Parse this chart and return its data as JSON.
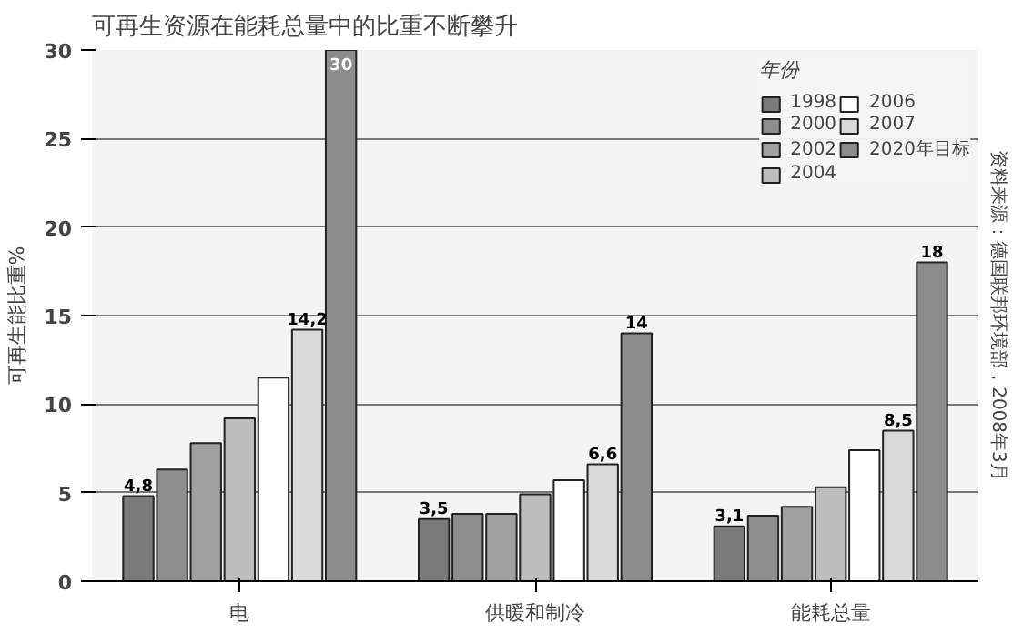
{
  "chart_data": {
    "type": "bar",
    "title": "可再生资源在能耗总量中的比重不断攀升",
    "ylabel": "可再生能比重%",
    "annotations": [
      "资料来源：德国联邦环境部，2008年3月"
    ],
    "categories": [
      "电",
      "供暖和制冷",
      "能耗总量"
    ],
    "ylim": [
      0,
      30
    ],
    "yticks": [
      0,
      5,
      10,
      15,
      20,
      25,
      30
    ],
    "grid": "y",
    "legend": "top right",
    "legend_title": "年份",
    "series": [
      {
        "name": "1998",
        "color": "#7a7a7a",
        "values": [
          4.8,
          3.5,
          3.1
        ],
        "value_labels": [
          "4,8",
          "3,5",
          "3,1"
        ]
      },
      {
        "name": "2000",
        "color": "#8e8e8e",
        "values": [
          6.3,
          3.8,
          3.7
        ]
      },
      {
        "name": "2002",
        "color": "#a0a0a0",
        "values": [
          7.8,
          3.8,
          4.2
        ]
      },
      {
        "name": "2004",
        "color": "#bdbdbd",
        "values": [
          9.2,
          4.9,
          5.3
        ]
      },
      {
        "name": "2006",
        "color": "#ffffff",
        "values": [
          11.5,
          5.7,
          7.4
        ]
      },
      {
        "name": "2007",
        "color": "#d9d9d9",
        "values": [
          14.2,
          6.6,
          8.5
        ],
        "value_labels": [
          "14,2",
          "6,6",
          "8,5"
        ]
      },
      {
        "name": "2020年目标",
        "color": "#8c8c8c",
        "values": [
          30,
          14,
          18
        ],
        "value_labels": [
          "30",
          "14",
          "18"
        ]
      }
    ]
  }
}
